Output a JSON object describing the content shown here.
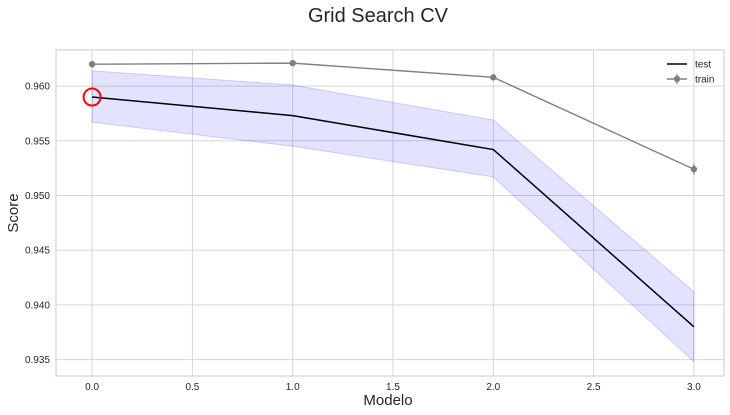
{
  "chart_data": {
    "type": "line",
    "title": "Grid Search CV",
    "xlabel": "Modelo",
    "ylabel": "Score",
    "xlim": [
      -0.18,
      3.15
    ],
    "ylim": [
      0.9335,
      0.9633
    ],
    "x_ticks": [
      0.0,
      0.5,
      1.0,
      1.5,
      2.0,
      2.5,
      3.0
    ],
    "x_tick_labels": [
      "0.0",
      "0.5",
      "1.0",
      "1.5",
      "2.0",
      "2.5",
      "3.0"
    ],
    "y_ticks": [
      0.935,
      0.94,
      0.945,
      0.95,
      0.955,
      0.96
    ],
    "y_tick_labels": [
      "0.935",
      "0.940",
      "0.945",
      "0.950",
      "0.955",
      "0.960"
    ],
    "grid": true,
    "legend_position": "top-right",
    "x": [
      0,
      1,
      2,
      3
    ],
    "series": [
      {
        "name": "test",
        "style": "line",
        "color": "#000000",
        "values": [
          0.959,
          0.9573,
          0.9542,
          0.938
        ],
        "band_lower": [
          0.9567,
          0.9545,
          0.9517,
          0.9348
        ],
        "band_upper": [
          0.9614,
          0.9601,
          0.9569,
          0.9412
        ],
        "band_color": "#0000ff"
      },
      {
        "name": "train",
        "style": "line-markers-errorbars",
        "color": "#808080",
        "values": [
          0.962,
          0.9621,
          0.9608,
          0.9524
        ],
        "errors": [
          0.0003,
          0.0002,
          0.0002,
          0.0005
        ]
      }
    ],
    "highlight": {
      "x": 0,
      "y": 0.959,
      "color": "#ff0000"
    }
  }
}
